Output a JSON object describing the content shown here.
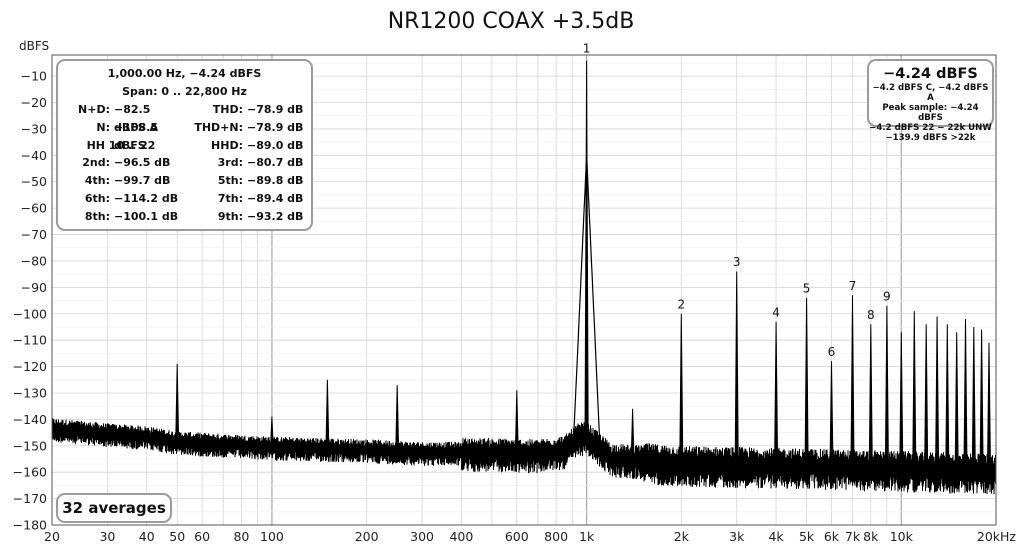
{
  "chart_data": {
    "type": "line",
    "title": "NR1200 COAX +3.5dB",
    "ylabel": "dBFS",
    "xlabel": "",
    "x_scale": "log",
    "xlim": [
      20,
      20000
    ],
    "ylim": [
      -180,
      -2
    ],
    "grid": true,
    "x_tick_labels": [
      {
        "value": 20,
        "label": "20"
      },
      {
        "value": 30,
        "label": "30"
      },
      {
        "value": 40,
        "label": "40"
      },
      {
        "value": 50,
        "label": "50"
      },
      {
        "value": 60,
        "label": "60"
      },
      {
        "value": 80,
        "label": "80"
      },
      {
        "value": 100,
        "label": "100"
      },
      {
        "value": 200,
        "label": "200"
      },
      {
        "value": 300,
        "label": "300"
      },
      {
        "value": 400,
        "label": "400"
      },
      {
        "value": 600,
        "label": "600"
      },
      {
        "value": 800,
        "label": "800"
      },
      {
        "value": 1000,
        "label": "1k"
      },
      {
        "value": 2000,
        "label": "2k"
      },
      {
        "value": 3000,
        "label": "3k"
      },
      {
        "value": 4000,
        "label": "4k"
      },
      {
        "value": 5000,
        "label": "5k"
      },
      {
        "value": 6000,
        "label": "6k"
      },
      {
        "value": 7000,
        "label": "7k"
      },
      {
        "value": 8000,
        "label": "8k"
      },
      {
        "value": 10000,
        "label": "10k"
      },
      {
        "value": 20000,
        "label": "20kHz"
      }
    ],
    "y_ticks": [
      -10,
      -20,
      -30,
      -40,
      -50,
      -60,
      -70,
      -80,
      -90,
      -100,
      -110,
      -120,
      -130,
      -140,
      -150,
      -160,
      -170,
      -180
    ],
    "series": [
      {
        "noise_floor": [
          [
            20,
            -143
          ],
          [
            30,
            -145
          ],
          [
            40,
            -146
          ],
          [
            50,
            -148
          ],
          [
            100,
            -150
          ],
          [
            200,
            -151
          ],
          [
            300,
            -152
          ],
          [
            500,
            -152
          ],
          [
            700,
            -152.5
          ],
          [
            850,
            -151
          ],
          [
            950,
            -146
          ],
          [
            1000,
            -146
          ],
          [
            1050,
            -148
          ],
          [
            1200,
            -154
          ],
          [
            2000,
            -156
          ],
          [
            5000,
            -157
          ],
          [
            10000,
            -158
          ],
          [
            20000,
            -159
          ]
        ],
        "spikes": [
          {
            "f": 50,
            "db": -119
          },
          {
            "f": 100,
            "db": -139
          },
          {
            "f": 150,
            "db": -125
          },
          {
            "f": 250,
            "db": -127
          },
          {
            "f": 600,
            "db": -129
          },
          {
            "f": 1000,
            "db": -4.24
          },
          {
            "f": 1400,
            "db": -136
          },
          {
            "f": 2000,
            "db": -100
          },
          {
            "f": 3000,
            "db": -84
          },
          {
            "f": 4000,
            "db": -103
          },
          {
            "f": 5000,
            "db": -94
          },
          {
            "f": 6000,
            "db": -118
          },
          {
            "f": 7000,
            "db": -93
          },
          {
            "f": 8000,
            "db": -104
          },
          {
            "f": 9000,
            "db": -97
          },
          {
            "f": 10000,
            "db": -107
          },
          {
            "f": 11000,
            "db": -99
          },
          {
            "f": 12000,
            "db": -104
          },
          {
            "f": 13000,
            "db": -101
          },
          {
            "f": 14000,
            "db": -104
          },
          {
            "f": 15000,
            "db": -107
          },
          {
            "f": 16000,
            "db": -102
          },
          {
            "f": 17000,
            "db": -105
          },
          {
            "f": 18000,
            "db": -106
          },
          {
            "f": 19000,
            "db": -111
          }
        ]
      }
    ],
    "annotations": [
      {
        "text": "1",
        "f": 1000,
        "db": -1
      },
      {
        "text": "2",
        "f": 2000,
        "db": -98
      },
      {
        "text": "3",
        "f": 3000,
        "db": -82
      },
      {
        "text": "4",
        "f": 4000,
        "db": -101
      },
      {
        "text": "5",
        "f": 5000,
        "db": -92
      },
      {
        "text": "6",
        "f": 6000,
        "db": -116
      },
      {
        "text": "7",
        "f": 7000,
        "db": -91
      },
      {
        "text": "8",
        "f": 8000,
        "db": -102
      },
      {
        "text": "9",
        "f": 9000,
        "db": -95
      }
    ],
    "line_color": "#000000",
    "grid_color": "#d4d4d4"
  },
  "stats": {
    "line1": "1,000.00 Hz, −4.24 dBFS",
    "line2": "Span: 0 .. 22,800 Hz",
    "rows": [
      {
        "l1": "N+D:",
        "v1": "−82.5 dBFS A",
        "l2": "THD:",
        "v2": "−78.9 dB"
      },
      {
        "l1": "N:",
        "v1": "−108.5 dBFS",
        "l2": "THD+N:",
        "v2": "−78.9 dB"
      },
      {
        "hh": "HH 10 .. 22",
        "l2": "HHD:",
        "v2": "−89.0 dB"
      },
      {
        "l1": "2nd:",
        "v1": "−96.5 dB",
        "l2": "3rd:",
        "v2": "−80.7 dB"
      },
      {
        "l1": "4th:",
        "v1": "−99.7 dB",
        "l2": "5th:",
        "v2": "−89.8 dB"
      },
      {
        "l1": "6th:",
        "v1": "−114.2 dB",
        "l2": "7th:",
        "v2": "−89.4 dB"
      },
      {
        "l1": "8th:",
        "v1": "−100.1 dB",
        "l2": "9th:",
        "v2": "−93.2 dB"
      }
    ]
  },
  "level_box": {
    "main": "−4.24 dBFS",
    "line1": "−4.2 dBFS C, −4.2 dBFS A",
    "line2": "Peak sample: −4.24 dBFS",
    "line3": "−4.2 dBFS 22 − 22k UNW",
    "line4": "−139.9 dBFS >22k"
  },
  "averages_label": "32 averages"
}
